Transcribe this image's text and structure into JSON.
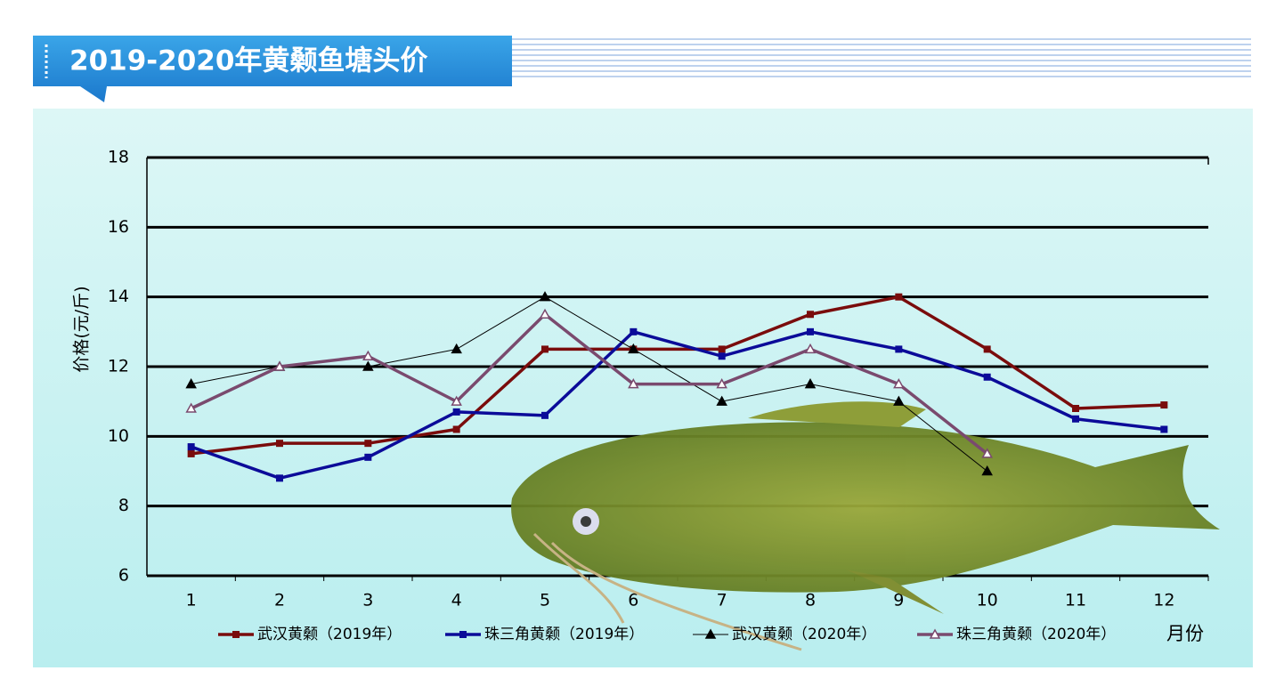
{
  "chart_data": {
    "type": "line",
    "title": "2019-2020年黄颡鱼塘头价",
    "x_label": "月份",
    "y_label": "价格(元/斤)",
    "categories": [
      "1",
      "2",
      "3",
      "4",
      "5",
      "6",
      "7",
      "8",
      "9",
      "10",
      "11",
      "12"
    ],
    "ylim": [
      6,
      18
    ],
    "yticks": [
      6,
      8,
      10,
      12,
      14,
      16,
      18
    ],
    "grid": true,
    "series": [
      {
        "name": "武汉黄颡（2019年）",
        "color": "#7a0c0c",
        "marker": "square",
        "line_width": 3.5,
        "values": [
          9.5,
          9.8,
          9.8,
          10.2,
          12.5,
          12.5,
          12.5,
          13.5,
          14,
          12.5,
          10.8,
          10.9
        ]
      },
      {
        "name": "珠三角黄颡（2019年）",
        "color": "#0b0b99",
        "marker": "square",
        "line_width": 3.5,
        "values": [
          9.7,
          8.8,
          9.4,
          10.7,
          10.6,
          13,
          12.3,
          13,
          12.5,
          11.7,
          10.5,
          10.2
        ]
      },
      {
        "name": "武汉黄颡（2020年）",
        "color": "#000000",
        "marker": "triangle",
        "line_width": 1,
        "values": [
          11.5,
          12,
          12,
          12.5,
          14,
          12.5,
          11,
          11.5,
          11,
          9,
          null,
          null
        ]
      },
      {
        "name": "珠三角黄颡（2020年）",
        "color": "#7a4a6e",
        "marker": "open-triangle",
        "line_width": 3.5,
        "values": [
          10.8,
          12,
          12.3,
          11,
          13.5,
          11.5,
          11.5,
          12.5,
          11.5,
          9.5,
          null,
          null
        ]
      }
    ]
  }
}
